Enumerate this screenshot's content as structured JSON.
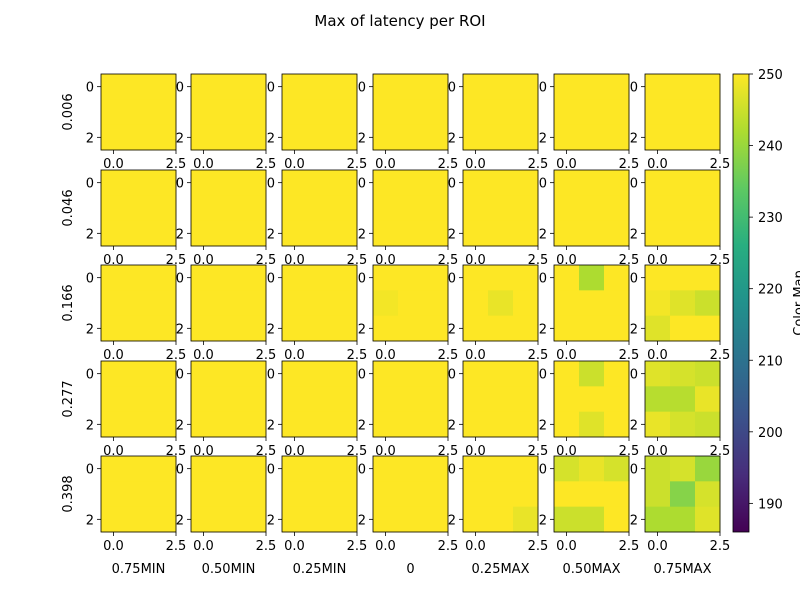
{
  "chart_data": {
    "type": "heatmap",
    "title": "Max of latency per ROI",
    "row_labels": [
      "0.006",
      "0.046",
      "0.166",
      "0.277",
      "0.398"
    ],
    "col_labels": [
      "0.75MIN",
      "0.50MIN",
      "0.25MIN",
      "0",
      "0.25MAX",
      "0.50MAX",
      "0.75MAX"
    ],
    "x_tick_labels": [
      "0.0",
      "2.5"
    ],
    "x_tick_values": [
      0.0,
      2.5
    ],
    "y_tick_labels": [
      "0",
      "2"
    ],
    "y_tick_values": [
      0,
      2
    ],
    "extent": [
      -0.5,
      2.5,
      2.5,
      -0.5
    ],
    "colorbar": {
      "label": "Color Map",
      "range": [
        186,
        250
      ],
      "tick_labels": [
        "190",
        "200",
        "210",
        "220",
        "230",
        "240",
        "250"
      ],
      "tick_values": [
        190,
        200,
        210,
        220,
        230,
        240,
        250
      ],
      "colormap": "viridis"
    },
    "cells": [
      [
        [
          [
            250,
            250,
            250
          ],
          [
            250,
            250,
            250
          ],
          [
            250,
            250,
            250
          ]
        ],
        [
          [
            250,
            250,
            250
          ],
          [
            250,
            250,
            250
          ],
          [
            250,
            250,
            250
          ]
        ],
        [
          [
            250,
            250,
            250
          ],
          [
            250,
            250,
            250
          ],
          [
            250,
            250,
            250
          ]
        ],
        [
          [
            250,
            250,
            250
          ],
          [
            250,
            250,
            250
          ],
          [
            250,
            250,
            250
          ]
        ],
        [
          [
            250,
            250,
            250
          ],
          [
            250,
            250,
            250
          ],
          [
            250,
            250,
            250
          ]
        ],
        [
          [
            250,
            250,
            250
          ],
          [
            250,
            250,
            250
          ],
          [
            250,
            250,
            250
          ]
        ],
        [
          [
            250,
            250,
            250
          ],
          [
            250,
            250,
            250
          ],
          [
            250,
            250,
            250
          ]
        ]
      ],
      [
        [
          [
            250,
            250,
            250
          ],
          [
            250,
            250,
            250
          ],
          [
            250,
            250,
            250
          ]
        ],
        [
          [
            250,
            250,
            250
          ],
          [
            250,
            250,
            250
          ],
          [
            250,
            250,
            250
          ]
        ],
        [
          [
            250,
            250,
            250
          ],
          [
            250,
            250,
            250
          ],
          [
            250,
            250,
            250
          ]
        ],
        [
          [
            250,
            250,
            250
          ],
          [
            250,
            250,
            250
          ],
          [
            250,
            250,
            250
          ]
        ],
        [
          [
            250,
            250,
            250
          ],
          [
            250,
            250,
            250
          ],
          [
            250,
            250,
            250
          ]
        ],
        [
          [
            250,
            250,
            250
          ],
          [
            250,
            250,
            250
          ],
          [
            250,
            250,
            250
          ]
        ],
        [
          [
            250,
            250,
            250
          ],
          [
            250,
            250,
            250
          ],
          [
            250,
            250,
            250
          ]
        ]
      ],
      [
        [
          [
            250,
            250,
            250
          ],
          [
            250,
            250,
            250
          ],
          [
            250,
            250,
            250
          ]
        ],
        [
          [
            250,
            250,
            250
          ],
          [
            250,
            250,
            250
          ],
          [
            250,
            250,
            250
          ]
        ],
        [
          [
            250,
            250,
            250
          ],
          [
            250,
            250,
            250
          ],
          [
            250,
            250,
            250
          ]
        ],
        [
          [
            250,
            250,
            250
          ],
          [
            249,
            250,
            250
          ],
          [
            250,
            250,
            250
          ]
        ],
        [
          [
            250,
            250,
            250
          ],
          [
            250,
            248,
            250
          ],
          [
            250,
            250,
            250
          ]
        ],
        [
          [
            250,
            242,
            250
          ],
          [
            250,
            250,
            250
          ],
          [
            250,
            250,
            250
          ]
        ],
        [
          [
            250,
            250,
            250
          ],
          [
            249,
            247,
            245
          ],
          [
            247,
            250,
            250
          ]
        ]
      ],
      [
        [
          [
            250,
            250,
            250
          ],
          [
            250,
            250,
            250
          ],
          [
            250,
            250,
            250
          ]
        ],
        [
          [
            250,
            250,
            250
          ],
          [
            250,
            250,
            250
          ],
          [
            250,
            250,
            250
          ]
        ],
        [
          [
            250,
            250,
            250
          ],
          [
            250,
            250,
            250
          ],
          [
            250,
            250,
            250
          ]
        ],
        [
          [
            250,
            250,
            250
          ],
          [
            250,
            250,
            250
          ],
          [
            250,
            250,
            250
          ]
        ],
        [
          [
            250,
            250,
            250
          ],
          [
            250,
            250,
            250
          ],
          [
            250,
            250,
            250
          ]
        ],
        [
          [
            250,
            245,
            250
          ],
          [
            250,
            250,
            250
          ],
          [
            250,
            247,
            250
          ]
        ],
        [
          [
            247,
            246,
            245
          ],
          [
            243,
            243,
            248
          ],
          [
            248,
            246,
            245
          ]
        ]
      ],
      [
        [
          [
            250,
            250,
            250
          ],
          [
            250,
            250,
            250
          ],
          [
            250,
            250,
            250
          ]
        ],
        [
          [
            250,
            250,
            250
          ],
          [
            250,
            250,
            250
          ],
          [
            250,
            250,
            250
          ]
        ],
        [
          [
            250,
            250,
            250
          ],
          [
            250,
            250,
            250
          ],
          [
            250,
            250,
            250
          ]
        ],
        [
          [
            250,
            250,
            250
          ],
          [
            250,
            250,
            250
          ],
          [
            250,
            250,
            250
          ]
        ],
        [
          [
            250,
            250,
            250
          ],
          [
            250,
            250,
            250
          ],
          [
            250,
            250,
            248
          ]
        ],
        [
          [
            246,
            248,
            246
          ],
          [
            250,
            250,
            250
          ],
          [
            245,
            245,
            250
          ]
        ],
        [
          [
            245,
            246,
            240
          ],
          [
            245,
            238,
            246
          ],
          [
            242,
            242,
            247
          ]
        ]
      ]
    ]
  }
}
